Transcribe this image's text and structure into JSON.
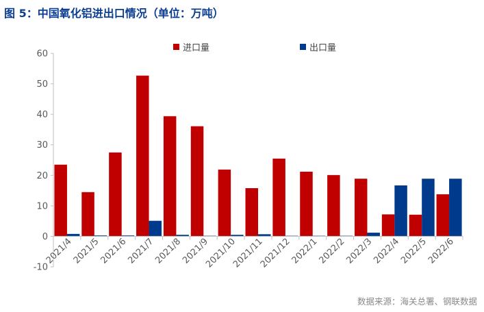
{
  "title": "图 5：中国氧化铝进出口情况（单位：万吨）",
  "source": "数据来源：海关总署、钢联数据",
  "colors": {
    "import": "#c00000",
    "export": "#003a8c",
    "axis": "#bfbfbf",
    "text": "#595959"
  },
  "chart_data": {
    "type": "bar",
    "categories": [
      "2021/4",
      "2021/5",
      "2021/6",
      "2021/7",
      "2021/8",
      "2021/9",
      "2021/10",
      "2021/11",
      "2021/12",
      "2022/1",
      "2022/2",
      "2022/3",
      "2022/4",
      "2022/5",
      "2022/6"
    ],
    "series": [
      {
        "name": "进口量",
        "color": "#c00000",
        "values": [
          23.5,
          14.5,
          27.5,
          52.7,
          39.4,
          36.1,
          21.9,
          15.8,
          25.5,
          21.2,
          20.1,
          18.9,
          7.2,
          7.1,
          13.8
        ]
      },
      {
        "name": "出口量",
        "color": "#003a8c",
        "values": [
          0.8,
          0.3,
          0.3,
          5.1,
          0.5,
          0.2,
          0.5,
          0.7,
          0.2,
          0.2,
          0.2,
          1.2,
          16.7,
          18.9,
          18.9
        ]
      }
    ],
    "yticks": [
      "-10",
      "0",
      "10",
      "20",
      "30",
      "40",
      "50",
      "60"
    ],
    "ylim": [
      -10,
      60
    ],
    "xlabel": "",
    "ylabel": "",
    "legend_position": "top-center",
    "grid": false
  }
}
